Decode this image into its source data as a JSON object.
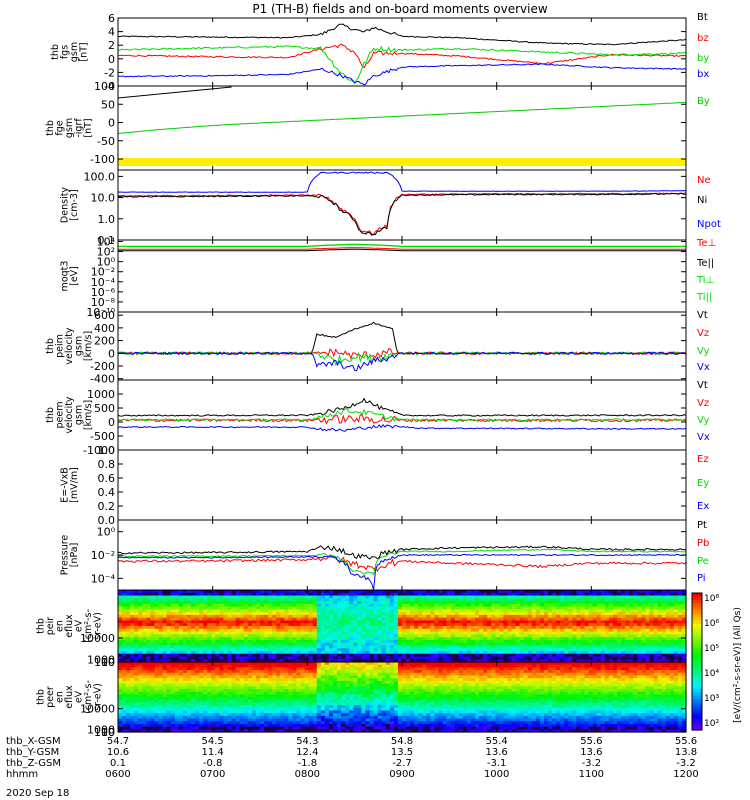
{
  "title": "P1 (TH-B) fields and on-board moments overview",
  "date_label": "2020 Sep 18",
  "colorbar": {
    "label": "[eV/(cm²-s-sr-eV)] (All Qs)",
    "ticks": [
      "10²",
      "10³",
      "10⁴",
      "10⁵",
      "10⁶",
      "10⁸"
    ]
  },
  "chart_data": [
    {
      "type": "line",
      "id": "fgs",
      "ylabel": [
        "thb",
        "fgs",
        "gsm",
        "[nT]"
      ],
      "ylim": [
        -4,
        6
      ],
      "yticks": [
        {
          "v": 6,
          "t": "6"
        },
        {
          "v": 4,
          "t": "4"
        },
        {
          "v": 2,
          "t": "2"
        },
        {
          "v": 0,
          "t": "0"
        },
        {
          "v": -2,
          "t": "-2"
        },
        {
          "v": -4,
          "t": "-4"
        }
      ],
      "hours": [
        6,
        7,
        7.8,
        8.15,
        8.35,
        8.5,
        8.6,
        8.7,
        9.0,
        9.6,
        10.5,
        11.2,
        12
      ],
      "series": [
        {
          "name": "Bt",
          "color": "#000000",
          "values": [
            3.3,
            3.2,
            3.1,
            3.6,
            5.0,
            4.3,
            3.9,
            4.6,
            3.3,
            3.1,
            2.3,
            2.1,
            2.8
          ],
          "noise": 0.2
        },
        {
          "name": "bz",
          "color": "#ff0000",
          "values": [
            0.5,
            0.3,
            0.2,
            1.5,
            2.0,
            1.0,
            -1.5,
            0.8,
            0.8,
            0.4,
            -0.7,
            0.6,
            0.4
          ],
          "noise": 0.25
        },
        {
          "name": "by",
          "color": "#00dd00",
          "values": [
            1.3,
            1.6,
            1.8,
            1.5,
            -2.0,
            -3.6,
            -0.8,
            1.5,
            1.3,
            1.5,
            1.0,
            0.6,
            0.8
          ],
          "noise": 0.3
        },
        {
          "name": "bx",
          "color": "#0000ff",
          "values": [
            -2.6,
            -2.5,
            -2.3,
            -1.5,
            -2.4,
            -3.3,
            -3.8,
            -2.5,
            -1.2,
            -1.0,
            -0.8,
            -1.3,
            -1.5
          ],
          "noise": 0.2
        }
      ]
    },
    {
      "type": "line",
      "id": "fge",
      "ylabel": [
        "thb",
        "fge",
        "gsm",
        "-igrf",
        "[nT]"
      ],
      "ylim": [
        -130,
        100
      ],
      "yticks": [
        {
          "v": 100,
          "t": "100"
        },
        {
          "v": 50,
          "t": "50"
        },
        {
          "v": 0,
          "t": "0"
        },
        {
          "v": -50,
          "t": "-50"
        },
        {
          "v": -100,
          "t": "-100"
        }
      ],
      "hours": [
        6,
        6.4,
        6.9,
        7.2,
        12
      ],
      "series": [
        {
          "name": "By",
          "color": "#00cc00",
          "values": [
            -30,
            -20,
            -10,
            -5,
            55
          ],
          "noise": 0
        }
      ],
      "extra_label": "By",
      "yellow_bar": true
    },
    {
      "type": "line",
      "id": "density",
      "ylog": true,
      "ylabel": [
        "Density",
        "[cm-3]"
      ],
      "ylim": [
        0.1,
        200
      ],
      "yticks": [
        {
          "v": 100,
          "t": "100.0"
        },
        {
          "v": 10,
          "t": "10.0"
        },
        {
          "v": 1,
          "t": "1.0"
        },
        {
          "v": 0.1,
          "t": "0.1"
        }
      ],
      "hours": [
        6,
        7,
        8.0,
        8.15,
        8.35,
        8.55,
        8.7,
        8.85,
        9.0,
        10,
        11,
        12
      ],
      "series": [
        {
          "name": "Ne",
          "color": "#ff0000",
          "values": [
            12,
            12.5,
            13,
            12,
            3,
            0.3,
            0.2,
            0.5,
            14,
            15,
            15,
            16
          ],
          "noise": 0.05
        },
        {
          "name": "Ni",
          "color": "#000000",
          "values": [
            11,
            11.5,
            12,
            11,
            2.5,
            0.25,
            0.18,
            0.4,
            13,
            14,
            14,
            15
          ],
          "noise": 0.05
        },
        {
          "name": "Npot",
          "color": "#0000ff",
          "values": [
            18,
            18,
            18,
            150,
            150,
            150,
            150,
            150,
            20,
            20,
            20,
            21
          ],
          "noise": 0.02
        }
      ]
    },
    {
      "type": "line",
      "id": "moms",
      "ylog": true,
      "ylabel": [
        "moqt3",
        "[eV]"
      ],
      "ylim": [
        1e-10,
        20000
      ],
      "yticks": [
        {
          "v": 10000,
          "t": "10⁴"
        },
        {
          "v": 100,
          "t": "10²"
        },
        {
          "v": 1,
          "t": "10⁰"
        },
        {
          "v": 0.01,
          "t": "10⁻²"
        },
        {
          "v": 0.0001,
          "t": "10⁻⁴"
        },
        {
          "v": 1e-06,
          "t": "10⁻⁶"
        },
        {
          "v": 1e-08,
          "t": "10⁻⁸"
        },
        {
          "v": 1e-10,
          "t": "10⁻¹⁰"
        }
      ],
      "hours": [
        6,
        8,
        8.5,
        9,
        12
      ],
      "series": [
        {
          "name": "Te⊥",
          "color": "#ff0000",
          "values": [
            300,
            300,
            600,
            300,
            300
          ],
          "noise": 0
        },
        {
          "name": "Te||",
          "color": "#000000",
          "values": [
            150,
            150,
            300,
            150,
            150
          ],
          "noise": 0
        },
        {
          "name": "Ti⊥",
          "color": "#00dd00",
          "values": [
            1200,
            1200,
            3000,
            1200,
            1200
          ],
          "noise": 0
        },
        {
          "name": "Ti||",
          "color": "#00dd00",
          "values": [
            1000,
            1000,
            2500,
            1000,
            1000
          ],
          "noise": 0
        }
      ]
    },
    {
      "type": "line",
      "id": "peim",
      "ylabel": [
        "thb",
        "peim",
        "velocity",
        "gsm",
        "[km/s]"
      ],
      "ylim": [
        -420,
        650
      ],
      "yticks": [
        {
          "v": 600,
          "t": "600"
        },
        {
          "v": 400,
          "t": "400"
        },
        {
          "v": 200,
          "t": "200"
        },
        {
          "v": 0,
          "t": "0"
        },
        {
          "v": -200,
          "t": "-200"
        },
        {
          "v": -400,
          "t": "-400"
        }
      ],
      "hours": [
        6,
        8.05,
        8.1,
        8.3,
        8.5,
        8.7,
        8.9,
        8.95,
        12
      ],
      "series": [
        {
          "name": "Vt",
          "color": "#000000",
          "values": [
            0,
            0,
            300,
            250,
            380,
            480,
            380,
            0,
            0
          ],
          "noise": 0.1
        },
        {
          "name": "Vz",
          "color": "#ff0000",
          "values": [
            0,
            0,
            0,
            20,
            -40,
            -20,
            20,
            0,
            0
          ],
          "noise": 0.5
        },
        {
          "name": "Vy",
          "color": "#00dd00",
          "values": [
            0,
            0,
            0,
            -120,
            -50,
            -80,
            -30,
            0,
            0
          ],
          "noise": 0.5
        },
        {
          "name": "Vx",
          "color": "#0000ff",
          "values": [
            0,
            0,
            -200,
            -150,
            -250,
            -120,
            -60,
            0,
            0
          ],
          "noise": 0.4
        }
      ]
    },
    {
      "type": "line",
      "id": "peem",
      "ylabel": [
        "thb",
        "peem",
        "velocity",
        "gsm",
        "[km/s]"
      ],
      "ylim": [
        -1000,
        1500
      ],
      "yticks": [
        {
          "v": 1000,
          "t": "1000"
        },
        {
          "v": 500,
          "t": "500"
        },
        {
          "v": 0,
          "t": "0"
        },
        {
          "v": -500,
          "t": "-500"
        },
        {
          "v": -1000,
          "t": "-1000"
        }
      ],
      "hours": [
        6,
        8.0,
        8.1,
        8.4,
        8.6,
        8.8,
        9.0,
        9.2,
        12
      ],
      "series": [
        {
          "name": "Vt",
          "color": "#000000",
          "values": [
            230,
            240,
            280,
            500,
            800,
            450,
            250,
            230,
            240
          ],
          "noise": 0.25
        },
        {
          "name": "Vz",
          "color": "#ff0000",
          "values": [
            60,
            60,
            80,
            100,
            120,
            80,
            60,
            60,
            60
          ],
          "noise": 0.5
        },
        {
          "name": "Vy",
          "color": "#00dd00",
          "values": [
            80,
            80,
            150,
            400,
            350,
            200,
            80,
            80,
            80
          ],
          "noise": 0.3
        },
        {
          "name": "Vx",
          "color": "#0000ff",
          "values": [
            -180,
            -180,
            -250,
            -300,
            -200,
            -150,
            -170,
            -220,
            -250
          ],
          "noise": 0.2
        }
      ]
    },
    {
      "type": "line",
      "id": "efield",
      "ylabel": [
        "E=-VxB",
        "[mV/m]"
      ],
      "ylim": [
        0,
        1
      ],
      "yticks": [
        {
          "v": 1.0,
          "t": "1.0"
        },
        {
          "v": 0.8,
          "t": "0.8"
        },
        {
          "v": 0.6,
          "t": "0.6"
        },
        {
          "v": 0.4,
          "t": "0.4"
        },
        {
          "v": 0.2,
          "t": "0.2"
        },
        {
          "v": 0.0,
          "t": "0.0"
        }
      ],
      "hours": [
        6,
        12
      ],
      "series": [
        {
          "name": "Ez",
          "color": "#ff0000",
          "values": [],
          "noise": 0
        },
        {
          "name": "Ey",
          "color": "#00dd00",
          "values": [],
          "noise": 0
        },
        {
          "name": "Ex",
          "color": "#0000ff",
          "values": [],
          "noise": 0
        }
      ]
    },
    {
      "type": "line",
      "id": "pressure",
      "ylog": true,
      "ylabel": [
        "Pressure",
        "[nPa]"
      ],
      "ylim": [
        1e-05,
        10
      ],
      "yticks": [
        {
          "v": 1,
          "t": "10⁰"
        },
        {
          "v": 0.01,
          "t": "10⁻²"
        },
        {
          "v": 0.0001,
          "t": "10⁻⁴"
        },
        {
          "v": 1e-06,
          "t": "10⁻⁶"
        }
      ],
      "hours": [
        6,
        7,
        8.0,
        8.2,
        8.45,
        8.7,
        9.0,
        9.5,
        10.5,
        11,
        12
      ],
      "series": [
        {
          "name": "Pt",
          "color": "#000000",
          "values": [
            0.015,
            0.016,
            0.02,
            0.05,
            0.01,
            0.005,
            0.03,
            0.04,
            0.05,
            0.03,
            0.03
          ],
          "noise": 0.15
        },
        {
          "name": "Pb",
          "color": "#ff0000",
          "values": [
            0.003,
            0.003,
            0.004,
            0.006,
            0.002,
            0.0005,
            0.003,
            0.002,
            0.001,
            0.002,
            0.002
          ],
          "noise": 0.2
        },
        {
          "name": "Pe",
          "color": "#00dd00",
          "values": [
            0.008,
            0.008,
            0.009,
            0.01,
            0.0005,
            0.0002,
            0.02,
            0.02,
            0.03,
            0.02,
            0.02
          ],
          "noise": 0.1
        },
        {
          "name": "Pi",
          "color": "#0000ff",
          "values": [
            0.006,
            0.006,
            0.007,
            0.008,
            0.0003,
            1e-05,
            0.01,
            0.01,
            0.01,
            0.01,
            0.01
          ],
          "noise": 0.1
        }
      ]
    },
    {
      "type": "heatmap",
      "id": "peir",
      "ylabel": [
        "thb",
        "peir",
        "en",
        "eflux",
        "eV",
        "(cm²-s-",
        "sr-eV)"
      ],
      "ylim": [
        3,
        30000
      ],
      "yticks": [
        {
          "v": 10000,
          "t": "10000"
        },
        {
          "v": 1000,
          "t": "1000"
        },
        {
          "v": 100,
          "t": "100"
        },
        {
          "v": 10,
          "t": "10"
        }
      ]
    },
    {
      "type": "heatmap",
      "id": "peer",
      "ylabel": [
        "thb",
        "peer",
        "en",
        "eflux",
        "eV",
        "(cm²-s-",
        "sr-eV)"
      ],
      "ylim": [
        5,
        30000
      ],
      "yticks": [
        {
          "v": 10000,
          "t": "10000"
        },
        {
          "v": 1000,
          "t": "1000"
        },
        {
          "v": 100,
          "t": "100"
        },
        {
          "v": 10,
          "t": "10"
        }
      ]
    }
  ],
  "x_axis": {
    "ticks_hours": [
      6,
      7,
      8,
      9,
      10,
      11,
      12
    ],
    "rows": [
      {
        "label": "thb_X-GSM",
        "values": [
          "54.7",
          "54.5",
          "54.3",
          "54.8",
          "55.4",
          "55.6",
          "55.6"
        ]
      },
      {
        "label": "thb_Y-GSM",
        "values": [
          "10.6",
          "11.4",
          "12.4",
          "13.5",
          "13.6",
          "13.6",
          "13.8"
        ]
      },
      {
        "label": "thb_Z-GSM",
        "values": [
          "0.1",
          "-0.8",
          "-1.8",
          "-2.7",
          "-3.1",
          "-3.2",
          "-3.2"
        ]
      },
      {
        "label": "hhmm",
        "values": [
          "0600",
          "0700",
          "0800",
          "0900",
          "1000",
          "1100",
          "1200"
        ]
      }
    ]
  }
}
